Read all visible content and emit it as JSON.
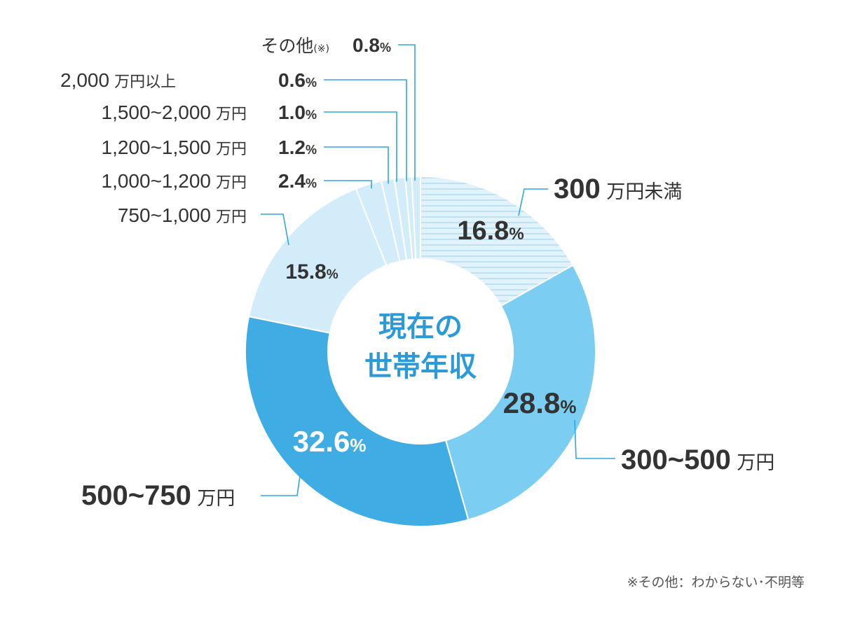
{
  "chart_data": {
    "type": "pie",
    "variant": "donut",
    "title": "現在の世帯年収",
    "title_lines": [
      "現在の",
      "世帯年収"
    ],
    "unit": "%",
    "slices": [
      {
        "label": "300万円未満",
        "value": 16.8,
        "value_label": "16.8",
        "color": "#d3ecf9",
        "hatched": true
      },
      {
        "label": "300~500万円",
        "value": 28.8,
        "value_label": "28.8",
        "color": "#7ccdf2"
      },
      {
        "label": "500~750万円",
        "value": 32.6,
        "value_label": "32.6",
        "color": "#3fade4"
      },
      {
        "label": "750~1,000万円",
        "value": 15.8,
        "value_label": "15.8",
        "color": "#d3ecf9"
      },
      {
        "label": "1,000~1,200万円",
        "value": 2.4,
        "value_label": "2.4",
        "color": "#d3ecf9"
      },
      {
        "label": "1,200~1,500万円",
        "value": 1.2,
        "value_label": "1.2",
        "color": "#d3ecf9"
      },
      {
        "label": "1,500~2,000万円",
        "value": 1.0,
        "value_label": "1.0",
        "color": "#d3ecf9"
      },
      {
        "label": "2,000万円以上",
        "value": 0.6,
        "value_label": "0.6",
        "color": "#d3ecf9"
      },
      {
        "label": "その他",
        "label_note": "(※)",
        "value": 0.8,
        "value_label": "0.8",
        "color": "#d3ecf9"
      }
    ],
    "footnote": "※その他：わからない･不明等"
  },
  "colors": {
    "accent": "#2c9ad6",
    "text": "#333333",
    "leader": "#2ea7dd",
    "center": "#ffffff"
  }
}
